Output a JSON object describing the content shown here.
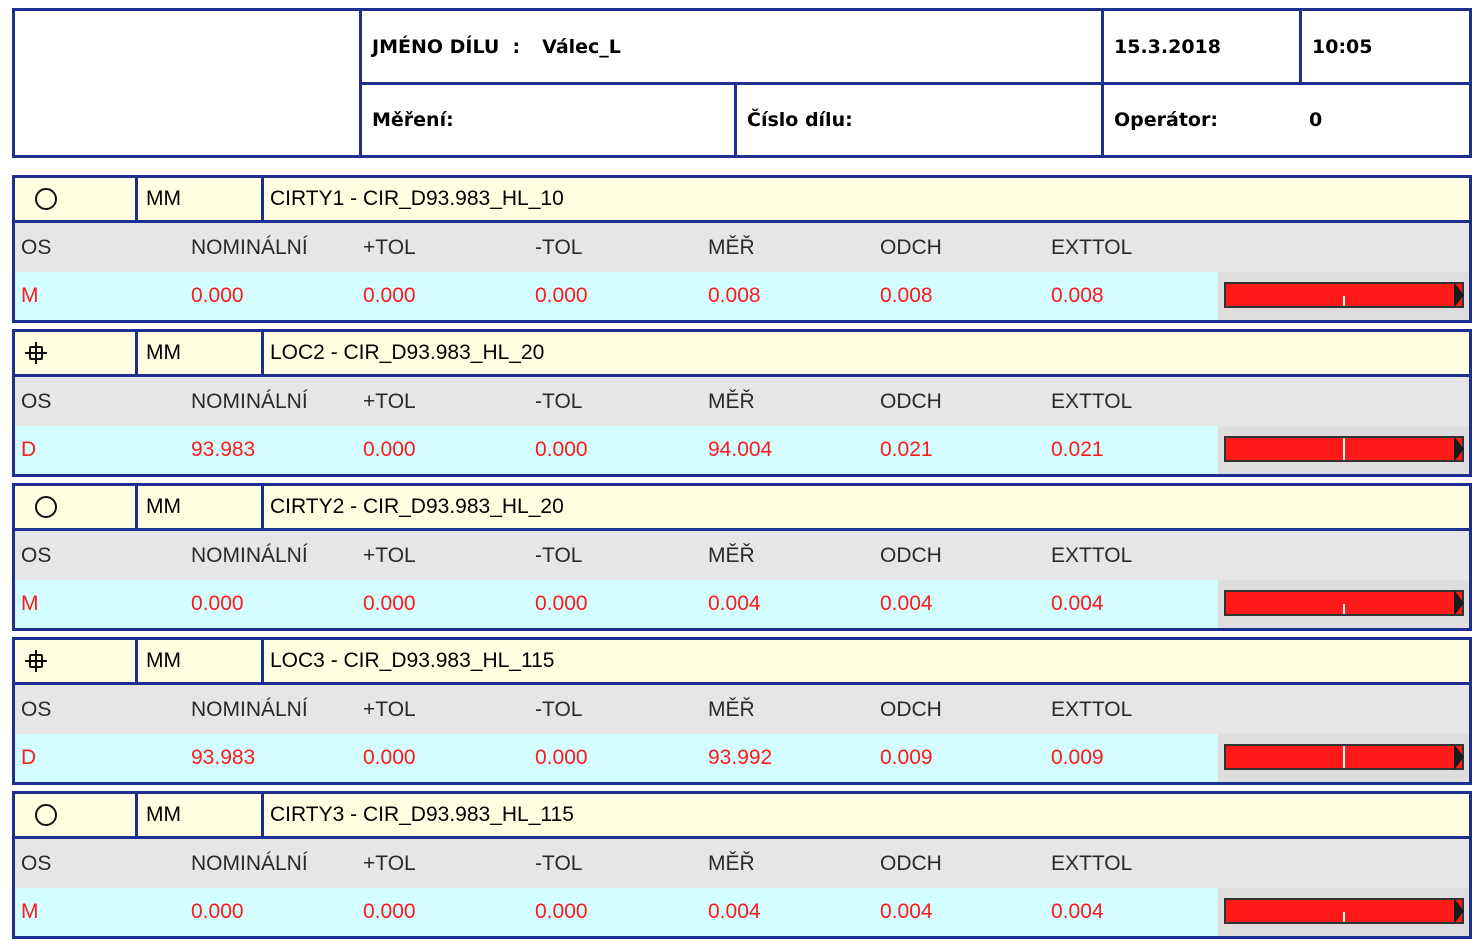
{
  "header": {
    "part_name_label": "JMÉNO DÍLU  :",
    "part_name_value": "Válec_L",
    "date": "15.3.2018",
    "time": "10:05",
    "measurement_label": "Měření:",
    "part_number_label": "Číslo dílu:",
    "operator_label": "Operátor:",
    "operator_value": "0"
  },
  "columns": [
    "OS",
    "NOMINÁLNÍ",
    "+TOL",
    "-TOL",
    "MĚŘ",
    "ODCH",
    "EXTTOL"
  ],
  "features": [
    {
      "icon": "circularity-icon",
      "unit": "MM",
      "name": "CIRTY1 - CIR_D93.983_HL_10",
      "axis": "M",
      "nominal": "0.000",
      "plus_tol": "0.000",
      "minus_tol": "0.000",
      "measured": "0.008",
      "deviation": "0.008",
      "exttol": "0.008"
    },
    {
      "icon": "position-icon",
      "unit": "MM",
      "name": "LOC2 - CIR_D93.983_HL_20",
      "axis": "D",
      "nominal": "93.983",
      "plus_tol": "0.000",
      "minus_tol": "0.000",
      "measured": "94.004",
      "deviation": "0.021",
      "exttol": "0.021"
    },
    {
      "icon": "circularity-icon",
      "unit": "MM",
      "name": "CIRTY2 - CIR_D93.983_HL_20",
      "axis": "M",
      "nominal": "0.000",
      "plus_tol": "0.000",
      "minus_tol": "0.000",
      "measured": "0.004",
      "deviation": "0.004",
      "exttol": "0.004"
    },
    {
      "icon": "position-icon",
      "unit": "MM",
      "name": "LOC3 - CIR_D93.983_HL_115",
      "axis": "D",
      "nominal": "93.983",
      "plus_tol": "0.000",
      "minus_tol": "0.000",
      "measured": "93.992",
      "deviation": "0.009",
      "exttol": "0.009"
    },
    {
      "icon": "circularity-icon",
      "unit": "MM",
      "name": "CIRTY3 - CIR_D93.983_HL_115",
      "axis": "M",
      "nominal": "0.000",
      "plus_tol": "0.000",
      "minus_tol": "0.000",
      "measured": "0.004",
      "deviation": "0.004",
      "exttol": "0.004"
    }
  ],
  "colors": {
    "border": "#1f2f8f",
    "title_bg": "#ffffe1",
    "header_row_bg": "#e6e6e6",
    "value_row_bg": "#d3fdff",
    "value_text": "#ff1a1a",
    "bar": "#ff1a1a"
  }
}
